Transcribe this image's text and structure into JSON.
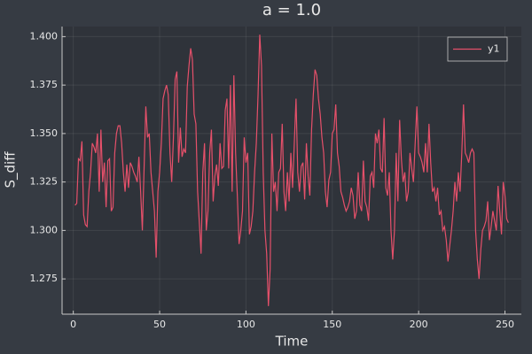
{
  "chart_data": {
    "type": "line",
    "title": "a = 1.0",
    "xlabel": "Time",
    "ylabel": "S_diff",
    "x": [
      1,
      2,
      3,
      4,
      5,
      6,
      7,
      8,
      9,
      10,
      11,
      12,
      13,
      14,
      15,
      16,
      17,
      18,
      19,
      20,
      21,
      22,
      23,
      24,
      25,
      26,
      27,
      28,
      29,
      30,
      31,
      32,
      33,
      34,
      35,
      36,
      37,
      38,
      39,
      40,
      41,
      42,
      43,
      44,
      45,
      46,
      47,
      48,
      49,
      50,
      51,
      52,
      53,
      54,
      55,
      56,
      57,
      58,
      59,
      60,
      61,
      62,
      63,
      64,
      65,
      66,
      67,
      68,
      69,
      70,
      71,
      72,
      73,
      74,
      75,
      76,
      77,
      78,
      79,
      80,
      81,
      82,
      83,
      84,
      85,
      86,
      87,
      88,
      89,
      90,
      91,
      92,
      93,
      94,
      95,
      96,
      97,
      98,
      99,
      100,
      101,
      102,
      103,
      104,
      105,
      106,
      107,
      108,
      109,
      110,
      111,
      112,
      113,
      114,
      115,
      116,
      117,
      118,
      119,
      120,
      121,
      122,
      123,
      124,
      125,
      126,
      127,
      128,
      129,
      130,
      131,
      132,
      133,
      134,
      135,
      136,
      137,
      138,
      139,
      140,
      141,
      142,
      143,
      144,
      145,
      146,
      147,
      148,
      149,
      150,
      151,
      152,
      153,
      154,
      155,
      156,
      157,
      158,
      159,
      160,
      161,
      162,
      163,
      164,
      165,
      166,
      167,
      168,
      169,
      170,
      171,
      172,
      173,
      174,
      175,
      176,
      177,
      178,
      179,
      180,
      181,
      182,
      183,
      184,
      185,
      186,
      187,
      188,
      189,
      190,
      191,
      192,
      193,
      194,
      195,
      196,
      197,
      198,
      199,
      200,
      201,
      202,
      203,
      204,
      205,
      206,
      207,
      208,
      209,
      210,
      211,
      212,
      213,
      214,
      215,
      216,
      217,
      218,
      219,
      220,
      221,
      222,
      223,
      224,
      225,
      226,
      227,
      228,
      229,
      230,
      231,
      232,
      233,
      234,
      235,
      236,
      237,
      238,
      239,
      240,
      241,
      242,
      243,
      244,
      245,
      246,
      247,
      248,
      249,
      250,
      251,
      252
    ],
    "series": [
      {
        "name": "y1",
        "color": "#e5506a",
        "values": [
          1.313,
          1.314,
          1.337,
          1.336,
          1.346,
          1.308,
          1.303,
          1.302,
          1.32,
          1.33,
          1.345,
          1.343,
          1.34,
          1.35,
          1.32,
          1.352,
          1.325,
          1.335,
          1.312,
          1.336,
          1.337,
          1.31,
          1.312,
          1.34,
          1.35,
          1.354,
          1.354,
          1.345,
          1.33,
          1.32,
          1.334,
          1.322,
          1.335,
          1.333,
          1.33,
          1.328,
          1.325,
          1.338,
          1.32,
          1.3,
          1.332,
          1.364,
          1.348,
          1.35,
          1.33,
          1.32,
          1.31,
          1.286,
          1.32,
          1.33,
          1.345,
          1.368,
          1.372,
          1.375,
          1.37,
          1.34,
          1.325,
          1.348,
          1.378,
          1.382,
          1.335,
          1.353,
          1.338,
          1.342,
          1.34,
          1.374,
          1.385,
          1.394,
          1.388,
          1.36,
          1.355,
          1.32,
          1.304,
          1.288,
          1.33,
          1.345,
          1.3,
          1.31,
          1.34,
          1.352,
          1.315,
          1.328,
          1.334,
          1.323,
          1.345,
          1.332,
          1.333,
          1.362,
          1.368,
          1.332,
          1.375,
          1.32,
          1.38,
          1.34,
          1.318,
          1.293,
          1.3,
          1.31,
          1.348,
          1.335,
          1.34,
          1.298,
          1.302,
          1.31,
          1.33,
          1.345,
          1.37,
          1.401,
          1.385,
          1.33,
          1.3,
          1.288,
          1.261,
          1.28,
          1.35,
          1.32,
          1.325,
          1.31,
          1.33,
          1.332,
          1.355,
          1.32,
          1.31,
          1.33,
          1.315,
          1.34,
          1.322,
          1.345,
          1.368,
          1.33,
          1.32,
          1.333,
          1.335,
          1.316,
          1.345,
          1.328,
          1.318,
          1.352,
          1.37,
          1.383,
          1.38,
          1.368,
          1.36,
          1.348,
          1.34,
          1.32,
          1.312,
          1.326,
          1.33,
          1.35,
          1.352,
          1.365,
          1.34,
          1.333,
          1.32,
          1.317,
          1.313,
          1.31,
          1.312,
          1.315,
          1.322,
          1.318,
          1.306,
          1.31,
          1.33,
          1.313,
          1.31,
          1.336,
          1.315,
          1.312,
          1.305,
          1.328,
          1.33,
          1.322,
          1.35,
          1.345,
          1.352,
          1.332,
          1.33,
          1.358,
          1.322,
          1.318,
          1.33,
          1.3,
          1.285,
          1.3,
          1.34,
          1.315,
          1.357,
          1.337,
          1.325,
          1.33,
          1.315,
          1.32,
          1.34,
          1.332,
          1.325,
          1.345,
          1.364,
          1.34,
          1.338,
          1.335,
          1.33,
          1.345,
          1.33,
          1.355,
          1.335,
          1.32,
          1.322,
          1.315,
          1.322,
          1.308,
          1.31,
          1.3,
          1.302,
          1.295,
          1.284,
          1.292,
          1.3,
          1.31,
          1.325,
          1.315,
          1.33,
          1.32,
          1.34,
          1.365,
          1.34,
          1.338,
          1.335,
          1.34,
          1.342,
          1.34,
          1.3,
          1.285,
          1.275,
          1.29,
          1.3,
          1.302,
          1.305,
          1.315,
          1.295,
          1.302,
          1.31,
          1.305,
          1.3,
          1.323,
          1.31,
          1.298,
          1.325,
          1.318,
          1.306,
          1.304
        ]
      }
    ],
    "xlim": [
      -6.5,
      259.5
    ],
    "xticks": [
      0,
      50,
      100,
      150,
      200,
      250
    ],
    "ylim": [
      1.2568,
      1.4052
    ],
    "yticks": [
      1.275,
      {
        "value": 1.3,
        "label": "1.300"
      },
      1.325,
      {
        "value": 1.35,
        "label": "1.350"
      },
      1.375,
      {
        "value": 1.4,
        "label": "1.400"
      }
    ],
    "grid": true,
    "legend": "top-right"
  }
}
